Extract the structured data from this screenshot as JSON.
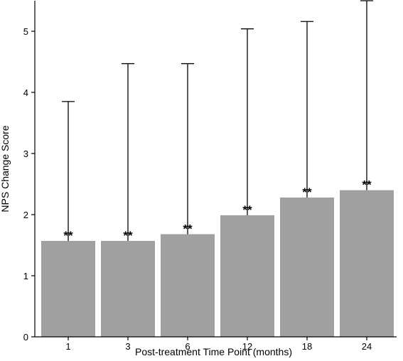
{
  "chart_data": {
    "type": "bar",
    "title": "",
    "xlabel": "Post-treatment Time Point (months)",
    "ylabel": "NPS Change Score",
    "categories": [
      "1",
      "3",
      "6",
      "12",
      "18",
      "24"
    ],
    "values": [
      1.57,
      1.57,
      1.68,
      1.99,
      2.28,
      2.4
    ],
    "error_upper": [
      3.85,
      4.47,
      4.47,
      5.04,
      5.16,
      5.5
    ],
    "significance": [
      "**",
      "**",
      "**",
      "**",
      "**",
      "**"
    ],
    "ylim": [
      0,
      5.5
    ],
    "yticks": [
      0,
      1,
      2,
      3,
      4,
      5
    ],
    "grid": false,
    "legend": "none",
    "bar_color": "#a0a0a0",
    "axis_color": "#000000"
  }
}
